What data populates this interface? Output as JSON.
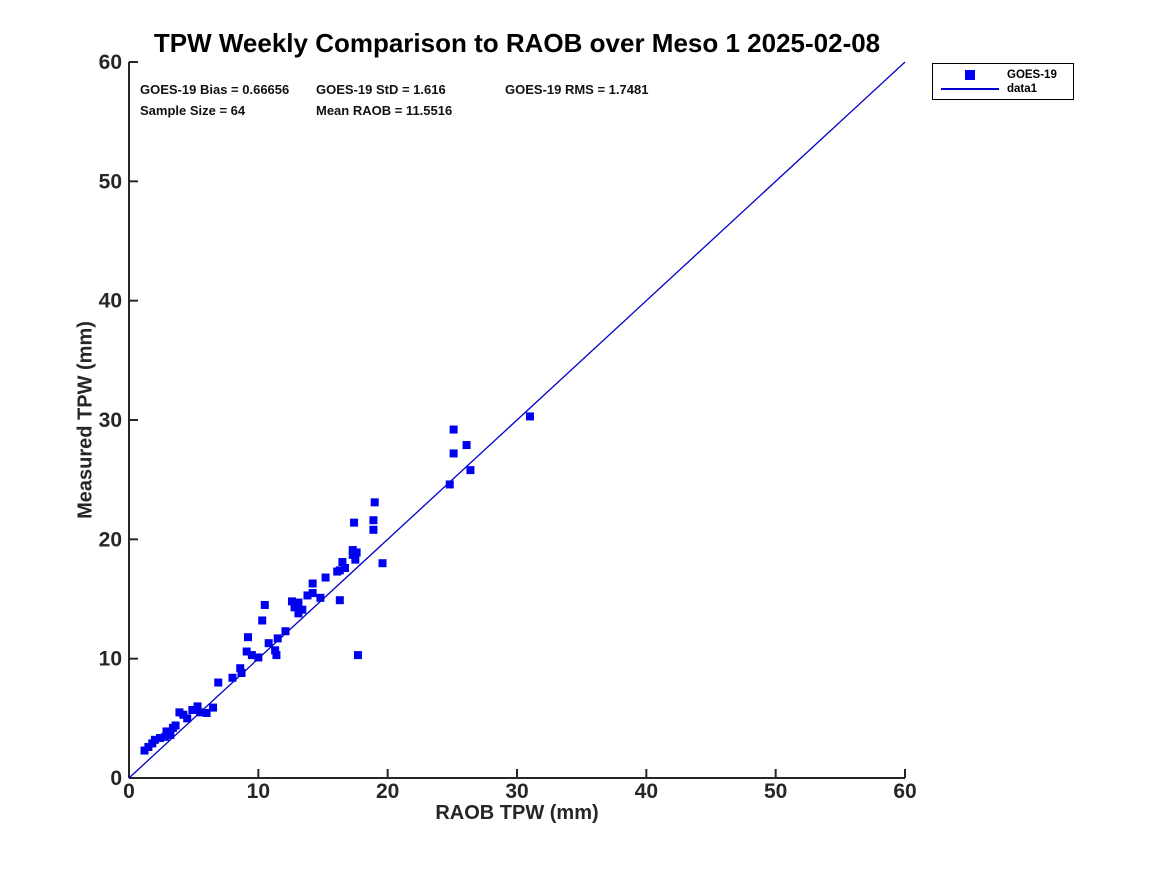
{
  "chart_data": {
    "type": "scatter",
    "title": "TPW Weekly Comparison to RAOB over Meso 1 2025-02-08",
    "xlabel": "RAOB TPW (mm)",
    "ylabel": "Measured TPW (mm)",
    "xlim": [
      0,
      60
    ],
    "ylim": [
      0,
      60
    ],
    "xticks": [
      0,
      10,
      20,
      30,
      40,
      50,
      60
    ],
    "yticks": [
      0,
      10,
      20,
      30,
      40,
      50,
      60
    ],
    "grid": false,
    "annotations": {
      "bias": "GOES-19 Bias = 0.66656",
      "std": "GOES-19 StD = 1.616",
      "rms": "GOES-19 RMS = 1.7481",
      "sample_size": "Sample Size = 64",
      "mean_raob": "Mean RAOB = 11.5516"
    },
    "stats": {
      "bias": 0.66656,
      "std": 1.616,
      "rms": 1.7481,
      "sample_size": 64,
      "mean_raob": 11.5516
    },
    "legend": {
      "position": "outside-top-right",
      "entries": [
        {
          "label": "GOES-19",
          "swatch": "square"
        },
        {
          "label": "data1",
          "swatch": "line"
        }
      ]
    },
    "colors": {
      "marker": "#0000f0",
      "line": "#0000cc",
      "axis": "#262626",
      "text": "#000000"
    },
    "series": [
      {
        "name": "GOES-19",
        "type": "scatter",
        "marker": "square",
        "points": [
          [
            1.2,
            2.3
          ],
          [
            1.5,
            2.6
          ],
          [
            1.8,
            2.9
          ],
          [
            2.0,
            3.2
          ],
          [
            2.4,
            3.35
          ],
          [
            2.8,
            3.45
          ],
          [
            2.9,
            3.9
          ],
          [
            3.2,
            3.6
          ],
          [
            3.4,
            4.2
          ],
          [
            3.6,
            4.4
          ],
          [
            3.9,
            5.5
          ],
          [
            4.2,
            5.3
          ],
          [
            4.5,
            5.0
          ],
          [
            4.9,
            5.7
          ],
          [
            5.3,
            6.0
          ],
          [
            5.5,
            5.5
          ],
          [
            6.0,
            5.45
          ],
          [
            6.5,
            5.9
          ],
          [
            6.9,
            8.0
          ],
          [
            8.0,
            8.4
          ],
          [
            8.6,
            9.2
          ],
          [
            8.7,
            8.8
          ],
          [
            9.1,
            10.6
          ],
          [
            9.2,
            11.8
          ],
          [
            9.5,
            10.3
          ],
          [
            10.0,
            10.1
          ],
          [
            10.3,
            13.2
          ],
          [
            10.5,
            14.5
          ],
          [
            10.8,
            11.3
          ],
          [
            11.3,
            10.7
          ],
          [
            11.4,
            10.3
          ],
          [
            11.5,
            11.7
          ],
          [
            12.1,
            12.3
          ],
          [
            12.6,
            14.8
          ],
          [
            12.8,
            14.3
          ],
          [
            13.1,
            13.8
          ],
          [
            13.1,
            14.7
          ],
          [
            13.4,
            14.1
          ],
          [
            13.8,
            15.3
          ],
          [
            14.2,
            15.5
          ],
          [
            14.2,
            16.3
          ],
          [
            14.8,
            15.1
          ],
          [
            15.2,
            16.8
          ],
          [
            16.1,
            17.3
          ],
          [
            16.3,
            14.9
          ],
          [
            16.3,
            17.4
          ],
          [
            16.5,
            18.1
          ],
          [
            16.7,
            17.6
          ],
          [
            17.3,
            18.7
          ],
          [
            17.3,
            19.1
          ],
          [
            17.4,
            21.4
          ],
          [
            17.5,
            18.3
          ],
          [
            17.6,
            18.9
          ],
          [
            17.7,
            10.3
          ],
          [
            18.9,
            21.6
          ],
          [
            18.9,
            20.8
          ],
          [
            19.0,
            23.1
          ],
          [
            19.6,
            18.0
          ],
          [
            24.8,
            24.6
          ],
          [
            25.1,
            29.2
          ],
          [
            25.1,
            27.2
          ],
          [
            26.1,
            27.9
          ],
          [
            26.4,
            25.8
          ],
          [
            31.0,
            30.3
          ]
        ]
      },
      {
        "name": "data1",
        "type": "line",
        "points": [
          [
            0,
            0
          ],
          [
            60,
            60
          ]
        ]
      }
    ]
  }
}
